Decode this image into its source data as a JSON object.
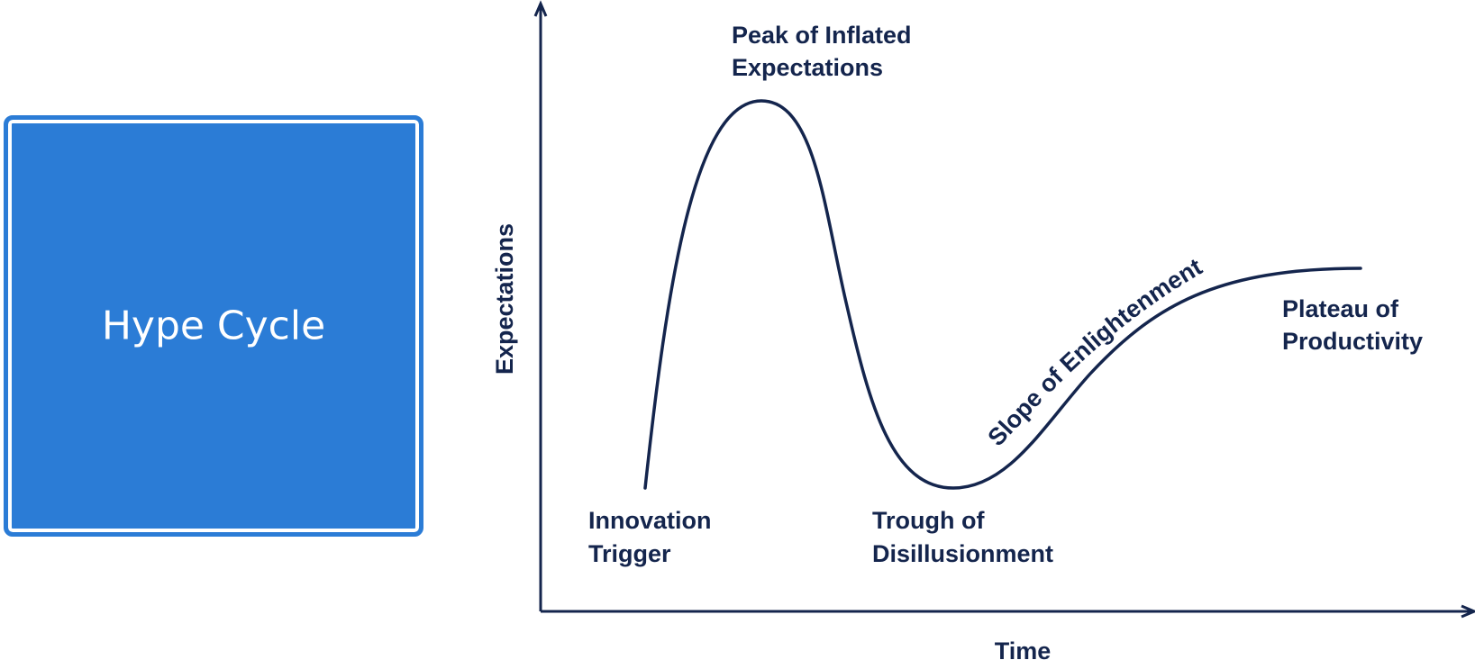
{
  "title_box": {
    "text": "Hype Cycle",
    "color": "#2b7cd6"
  },
  "diagram": {
    "x_axis_label": "Time",
    "y_axis_label": "Expectations",
    "curve_color": "#14254d",
    "phases": {
      "innovation_trigger": [
        "Innovation",
        "Trigger"
      ],
      "peak": [
        "Peak of Inflated",
        "Expectations"
      ],
      "trough": [
        "Trough of",
        "Disillusionment"
      ],
      "slope": "Slope of Enlightenment",
      "plateau": [
        "Plateau of",
        "Productivity"
      ]
    }
  }
}
